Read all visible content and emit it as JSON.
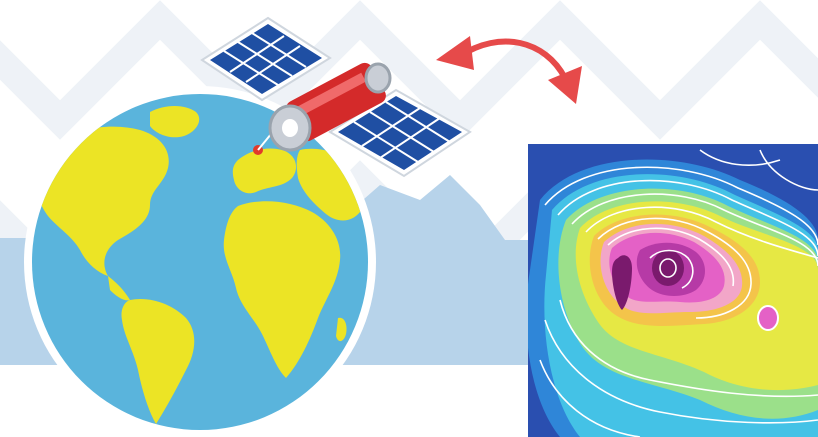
{
  "scene": {
    "elements": [
      "globe",
      "satellite",
      "two-way-arrow",
      "contour-map",
      "mountain-silhouette"
    ],
    "colors": {
      "background": "#ffffff",
      "pattern": "#eef2f7",
      "mountain": "#b7d3ea",
      "ocean": "#5ab4dc",
      "land": "#ece425",
      "globe_outline": "#ffffff",
      "solar_panel": "#1f4fa3",
      "satellite_body": "#d42a2a",
      "arrow": "#e64a4a",
      "contour_lines": "#ffffff",
      "contour_palette": [
        "#2a4fb0",
        "#2f86d8",
        "#44c2e6",
        "#9be08a",
        "#e6e844",
        "#f4c44a",
        "#f2a6c8",
        "#e461c6",
        "#b63aa6",
        "#7a1a6d"
      ]
    }
  }
}
